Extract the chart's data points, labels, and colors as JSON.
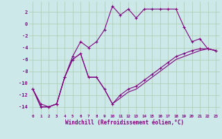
{
  "xlabel": "Windchill (Refroidissement éolien,°C)",
  "bg_color": "#cce8e8",
  "grid_color": "#aaccaa",
  "line_color": "#800080",
  "xlim": [
    -0.5,
    23.5
  ],
  "ylim": [
    -15.2,
    3.8
  ],
  "xticks": [
    0,
    1,
    2,
    3,
    4,
    5,
    6,
    7,
    8,
    9,
    10,
    11,
    12,
    13,
    14,
    15,
    16,
    17,
    18,
    19,
    20,
    21,
    22,
    23
  ],
  "yticks": [
    -14,
    -12,
    -10,
    -8,
    -6,
    -4,
    -2,
    0,
    2
  ],
  "series1_x": [
    0,
    1,
    2,
    3,
    4,
    5,
    6,
    7,
    8,
    9,
    10,
    11,
    12,
    13,
    14,
    15,
    16,
    17,
    18,
    19,
    20,
    21,
    22,
    23
  ],
  "series1_y": [
    -11,
    -13.5,
    -14,
    -13.5,
    -9,
    -5.5,
    -3.0,
    -4.0,
    -3.0,
    -1.0,
    3.0,
    1.5,
    2.5,
    1.0,
    2.5,
    2.5,
    2.5,
    2.5,
    2.5,
    -0.5,
    -3.0,
    -2.5,
    -4.2,
    -4.5
  ],
  "series2_x": [
    0,
    1,
    2,
    3,
    4,
    5,
    6,
    7,
    8,
    9,
    10,
    11,
    12,
    13,
    14,
    15,
    16,
    17,
    18,
    19,
    20,
    21,
    22,
    23
  ],
  "series2_y": [
    -11,
    -14,
    -14,
    -13.5,
    -9,
    -6.0,
    -5.0,
    -9.0,
    -9.0,
    -11.0,
    -13.5,
    -12.0,
    -11.0,
    -10.5,
    -9.5,
    -8.5,
    -7.5,
    -6.5,
    -5.5,
    -5.0,
    -4.5,
    -4.2,
    -4.2,
    -4.5
  ],
  "series3_x": [
    0,
    1,
    2,
    3,
    4,
    5,
    6,
    7,
    8,
    9,
    10,
    11,
    12,
    13,
    14,
    15,
    16,
    17,
    18,
    19,
    20,
    21,
    22,
    23
  ],
  "series3_y": [
    -11,
    -14,
    -14,
    -13.5,
    -9,
    -6.0,
    -5.0,
    -9.0,
    -9.0,
    -11.0,
    -13.5,
    -12.5,
    -11.5,
    -11.0,
    -10.0,
    -9.0,
    -8.0,
    -7.0,
    -6.0,
    -5.5,
    -5.0,
    -4.5,
    -4.2,
    -4.5
  ]
}
